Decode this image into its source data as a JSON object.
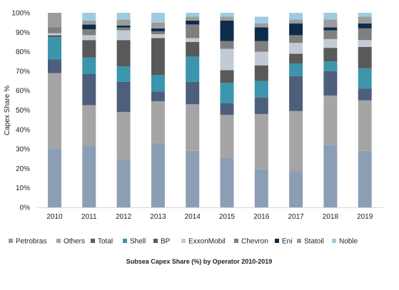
{
  "chart_data": {
    "type": "bar",
    "stacked": true,
    "title": "Subsea Capex Share (%) by Operator 2010-2019",
    "xlabel": "",
    "ylabel": "Capex Share %",
    "ylim": [
      0,
      100
    ],
    "ytick_step": 10,
    "ytick_suffix": "%",
    "grid": false,
    "legend_position": "bottom",
    "categories": [
      "2010",
      "2011",
      "2012",
      "2013",
      "2014",
      "2015",
      "2016",
      "2017",
      "2018",
      "2019"
    ],
    "series": [
      {
        "name": "Petrobras",
        "color": "#8c9eb4",
        "values": [
          30,
          31.5,
          24.5,
          33,
          29,
          25.5,
          19.5,
          18.5,
          32,
          29
        ]
      },
      {
        "name": "Others",
        "color": "#a5a5a5",
        "values": [
          39,
          21,
          24.5,
          21.5,
          24,
          22,
          28.5,
          31,
          25.5,
          26
        ]
      },
      {
        "name": "Total",
        "color": "#4e5f7c",
        "values": [
          7,
          16,
          15.5,
          5,
          11.5,
          6,
          8.5,
          18,
          12.5,
          6
        ]
      },
      {
        "name": "Shell",
        "color": "#3a95ad",
        "values": [
          11.5,
          8.5,
          8,
          8.5,
          13,
          10.5,
          8.5,
          6.5,
          5,
          10.5
        ]
      },
      {
        "name": "BP",
        "color": "#595959",
        "values": [
          1,
          9,
          13.5,
          19,
          7.5,
          6.5,
          8,
          5,
          7,
          11
        ]
      },
      {
        "name": "ExxonMobil",
        "color": "#c2cbd5",
        "values": [
          1,
          2.5,
          5,
          2,
          2,
          11,
          7,
          5.5,
          4.5,
          3.5
        ]
      },
      {
        "name": "Chevron",
        "color": "#7f7f7f",
        "values": [
          3,
          3,
          1.5,
          1.5,
          7,
          4,
          5.5,
          4,
          4.5,
          6
        ]
      },
      {
        "name": "Eni",
        "color": "#0d2c4c",
        "values": [
          0,
          2.5,
          1,
          1.5,
          2,
          10.5,
          7,
          6,
          1.5,
          2.5
        ]
      },
      {
        "name": "Statoil",
        "color": "#9c9c9c",
        "values": [
          7.5,
          2,
          3,
          3,
          2,
          2,
          2,
          2,
          4,
          3.5
        ]
      },
      {
        "name": "Noble",
        "color": "#9ecbdf",
        "values": [
          0,
          4,
          3.5,
          5,
          2,
          2,
          3.5,
          3.5,
          3.5,
          2
        ]
      }
    ]
  }
}
